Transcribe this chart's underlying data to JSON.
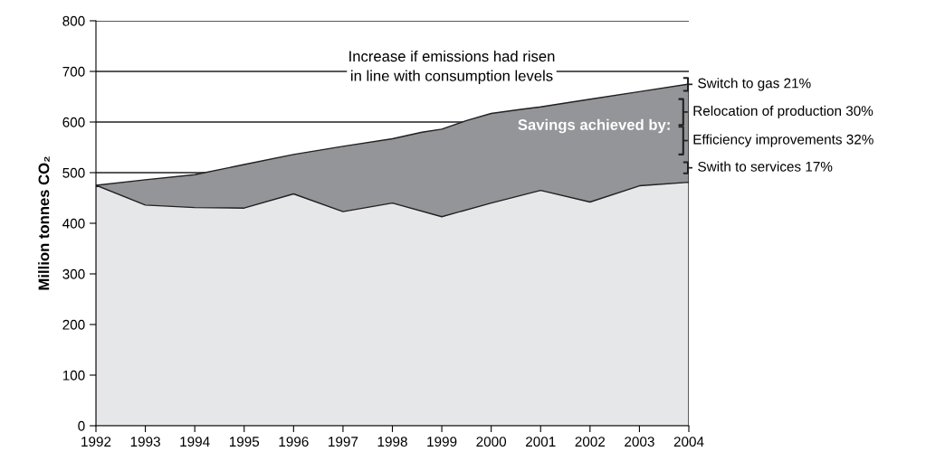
{
  "chart_data": {
    "type": "area",
    "ylabel": "Million tonnes CO₂",
    "series": [
      {
        "color": "#939598",
        "x": [
          1992,
          1993,
          1994,
          1995,
          1996,
          1997,
          1998,
          1998.6,
          1999,
          1999.5,
          2000,
          2000.6,
          2001,
          2002,
          2003,
          2004
        ],
        "values": [
          475,
          486,
          496,
          516,
          536,
          552,
          567,
          580,
          586,
          603,
          617,
          625,
          630,
          645,
          660,
          675
        ]
      },
      {
        "color": "#e6e7e8",
        "x": [
          1992,
          1993,
          1994,
          1995,
          1996,
          1997,
          1998,
          1999,
          2000,
          2001,
          2002,
          2003,
          2004
        ],
        "values": [
          475,
          436,
          431,
          430,
          458,
          423,
          440,
          413,
          440,
          465,
          442,
          474,
          481
        ]
      }
    ],
    "xlim": [
      1992,
      2004
    ],
    "xticks": [
      1992,
      1993,
      1994,
      1995,
      1996,
      1997,
      1998,
      1999,
      2000,
      2001,
      2002,
      2003,
      2004
    ],
    "ylim": [
      0,
      800
    ],
    "yticks": [
      0,
      100,
      200,
      300,
      400,
      500,
      600,
      700,
      800
    ],
    "grid": "y",
    "annotations": [
      "Increase if emissions had risen\nin line with consumption levels",
      "Savings achieved by:",
      "Switch to gas 21%",
      "Relocation of production 30%",
      "Efficiency improvements 32%",
      "Swith to services 17%"
    ]
  }
}
